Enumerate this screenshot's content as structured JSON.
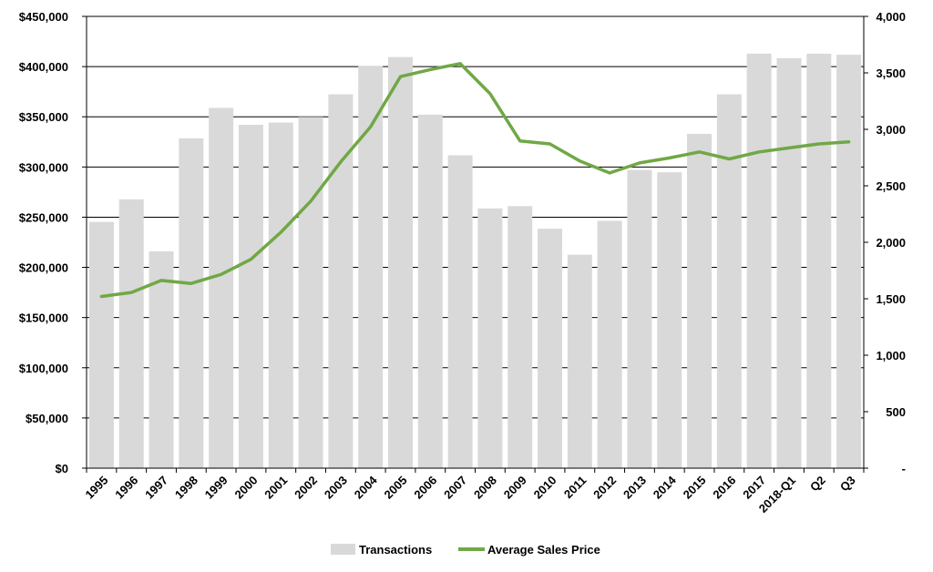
{
  "chart_data": {
    "type": "bar",
    "categories": [
      "1995",
      "1996",
      "1997",
      "1998",
      "1999",
      "2000",
      "2001",
      "2002",
      "2003",
      "2004",
      "2005",
      "2006",
      "2007",
      "2008",
      "2009",
      "2010",
      "2011",
      "2012",
      "2013",
      "2014",
      "2015",
      "2016",
      "2017",
      "2018-Q1",
      "Q2",
      "Q3"
    ],
    "series": [
      {
        "name": "Transactions",
        "type": "bar",
        "axis": "right",
        "color": "#d9d9d9",
        "values": [
          2180,
          2380,
          1920,
          2920,
          3190,
          3040,
          3060,
          3110,
          3310,
          3560,
          3640,
          3130,
          2770,
          2300,
          2320,
          2120,
          1890,
          2190,
          2640,
          2620,
          2960,
          3310,
          3670,
          3630,
          3670,
          3660
        ]
      },
      {
        "name": "Average Sales Price",
        "type": "line",
        "axis": "left",
        "color": "#70a845",
        "values": [
          171000,
          175000,
          187000,
          184000,
          193000,
          208000,
          235000,
          266000,
          305000,
          340000,
          390000,
          397000,
          403000,
          373000,
          326000,
          323000,
          306000,
          294000,
          304000,
          309000,
          315000,
          308000,
          315000,
          319000,
          323000,
          325000
        ]
      }
    ],
    "y_left": {
      "range": [
        0,
        450000
      ],
      "ticks": [
        0,
        50000,
        100000,
        150000,
        200000,
        250000,
        300000,
        350000,
        400000,
        450000
      ],
      "tick_labels": [
        "$0",
        "$50,000",
        "$100,000",
        "$150,000",
        "$200,000",
        "$250,000",
        "$300,000",
        "$350,000",
        "$400,000",
        "$450,000"
      ]
    },
    "y_right": {
      "range": [
        0,
        4000
      ],
      "ticks": [
        0,
        500,
        1000,
        1500,
        2000,
        2500,
        3000,
        3500,
        4000
      ],
      "tick_labels": [
        "-",
        "500",
        "1,000",
        "1,500",
        "2,000",
        "2,500",
        "3,000",
        "3,500",
        "4,000"
      ]
    },
    "title": "",
    "xlabel": "",
    "ylabel": "",
    "grid": true,
    "legend": {
      "position": "bottom",
      "items": [
        "Transactions",
        "Average Sales Price"
      ]
    }
  }
}
